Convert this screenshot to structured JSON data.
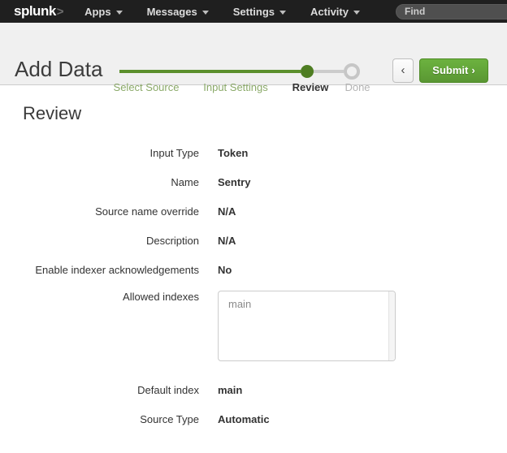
{
  "nav": {
    "logo_text": "splunk",
    "logo_chevron": ">",
    "items": [
      {
        "label": "Apps"
      },
      {
        "label": "Messages"
      },
      {
        "label": "Settings"
      },
      {
        "label": "Activity"
      }
    ],
    "search_placeholder": "Find"
  },
  "header": {
    "title": "Add Data",
    "steps": [
      {
        "label": "Select Source",
        "state": "complete"
      },
      {
        "label": "Input Settings",
        "state": "complete"
      },
      {
        "label": "Review",
        "state": "current"
      },
      {
        "label": "Done",
        "state": "upcoming"
      }
    ],
    "back_chevron": "‹",
    "submit_label": "Submit",
    "submit_chevron": "›"
  },
  "main": {
    "title": "Review",
    "fields": [
      {
        "label": "Input Type",
        "value": "Token"
      },
      {
        "label": "Name",
        "value": "Sentry"
      },
      {
        "label": "Source name override",
        "value": "N/A"
      },
      {
        "label": "Description",
        "value": "N/A"
      },
      {
        "label": "Enable indexer acknowledgements",
        "value": "No"
      },
      {
        "label": "Allowed indexes",
        "value": "main"
      },
      {
        "label": "Default index",
        "value": "main"
      },
      {
        "label": "Source Type",
        "value": "Automatic"
      }
    ]
  },
  "colors": {
    "accent_green": "#65a637",
    "progress_green": "#5b8f2c",
    "nav_bg": "#1f1f1f",
    "header_bg": "#f0f0f0",
    "step_complete_text": "#8aa968",
    "step_upcoming_text": "#b3b3b3",
    "body_text": "#333333",
    "muted_text": "#8a8a8a"
  }
}
